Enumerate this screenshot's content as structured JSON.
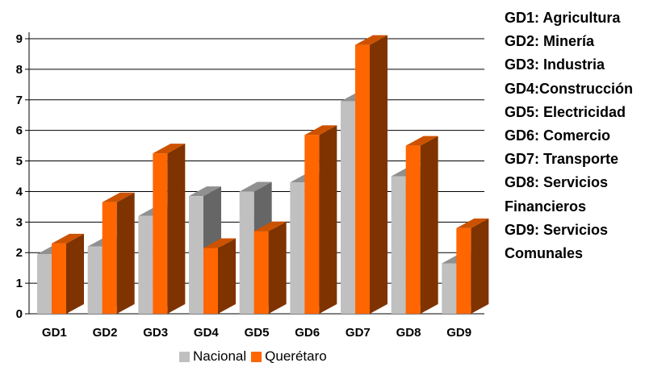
{
  "chart_data": {
    "type": "bar",
    "categories": [
      "GD1",
      "GD2",
      "GD3",
      "GD4",
      "GD5",
      "GD6",
      "GD7",
      "GD8",
      "GD9"
    ],
    "series": [
      {
        "name": "Nacional",
        "values": [
          1.95,
          2.2,
          3.2,
          3.85,
          4.0,
          4.3,
          6.95,
          4.5,
          1.65
        ]
      },
      {
        "name": "Querétaro",
        "values": [
          2.3,
          3.65,
          5.25,
          2.15,
          2.7,
          5.85,
          8.8,
          5.5,
          2.8
        ]
      }
    ],
    "ylim": [
      0,
      9
    ],
    "yticks": [
      "0",
      "1",
      "2",
      "3",
      "4",
      "5",
      "6",
      "7",
      "8",
      "9"
    ],
    "grid": true,
    "legend_position": "bottom",
    "colors": {
      "Nacional": {
        "front": "#c0c0c0",
        "side": "#666666",
        "top": "#909090"
      },
      "Querétaro": {
        "front": "#ff6600",
        "side": "#7f3300",
        "top": "#cc5200"
      }
    },
    "annotations": [
      "GD1: Agricultura",
      "GD2: Minería",
      "GD3: Industria",
      "GD4:Construcción",
      "GD5: Electricidad",
      "GD6: Comercio",
      "GD7: Transporte",
      "GD8: Servicios",
      "Financieros",
      "GD9: Servicios",
      "Comunales"
    ]
  }
}
